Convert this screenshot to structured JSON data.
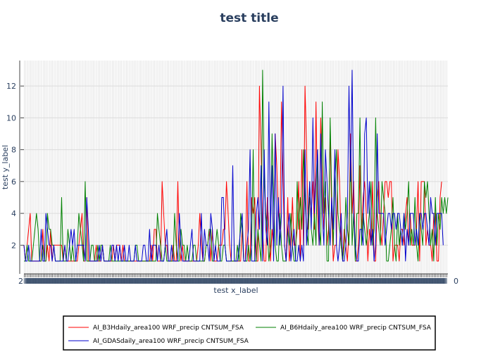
{
  "chart_data": {
    "type": "line",
    "title": "test title",
    "xlabel": "test x_label",
    "ylabel": "test y_label",
    "ylim": [
      0.2,
      13.6
    ],
    "yticks": [
      2,
      4,
      6,
      8,
      10,
      12
    ],
    "xlim": [
      0,
      270
    ],
    "xtick_count": 270,
    "xtick_labels": {
      "first": "2",
      "last": "0"
    },
    "grid": true,
    "legend_position": "bottom",
    "series": [
      {
        "name": "AI_B3Hdaily_area100 WRF_precip CNTSUM_FSA",
        "color": "#ff0000",
        "values": [
          2,
          1,
          2,
          3,
          4,
          1,
          1,
          1,
          1,
          1,
          1,
          1,
          3,
          1,
          1,
          2,
          1,
          3,
          1,
          2,
          2,
          2,
          2,
          2,
          2,
          1,
          2,
          1,
          1,
          1,
          1,
          1,
          1,
          1,
          1,
          2,
          3,
          4,
          1,
          1,
          5,
          1,
          1,
          1,
          1,
          1,
          2,
          1,
          1,
          1,
          2,
          1,
          1,
          1,
          1,
          1,
          1,
          2,
          1,
          2,
          2,
          2,
          1,
          2,
          1,
          1,
          1,
          1,
          1,
          1,
          1,
          1,
          1,
          1,
          1,
          1,
          1,
          1,
          1,
          1,
          1,
          2,
          1,
          3,
          3,
          1,
          1,
          1,
          6,
          4,
          2,
          2,
          1,
          1,
          1,
          2,
          1,
          1,
          6,
          2,
          1,
          2,
          1,
          1,
          1,
          1,
          1,
          1,
          1,
          1,
          1,
          2,
          4,
          2,
          1,
          1,
          2,
          2,
          3,
          1,
          3,
          1,
          1,
          1,
          2,
          2,
          2,
          3,
          3,
          6,
          4,
          2,
          1,
          1,
          1,
          1,
          1,
          1,
          1,
          3,
          1,
          1,
          6,
          1,
          1,
          5,
          4,
          5,
          1,
          1,
          12,
          8,
          3,
          1,
          1,
          5,
          3,
          1,
          3,
          2,
          9,
          7,
          4,
          3,
          11,
          6,
          2,
          1,
          5,
          1,
          2,
          5,
          2,
          2,
          3,
          6,
          1,
          8,
          2,
          12,
          8,
          3,
          5,
          4,
          6,
          3,
          11,
          4,
          2,
          10,
          6,
          3,
          5,
          2,
          3,
          9,
          4,
          1,
          2,
          2,
          8,
          6,
          2,
          1,
          3,
          2,
          1,
          3,
          9,
          4,
          6,
          1,
          1,
          2,
          7,
          3,
          5,
          6,
          4,
          1,
          3,
          2,
          6,
          1,
          1,
          5,
          6,
          3,
          2,
          4,
          6,
          6,
          5,
          6,
          6,
          1,
          2,
          2,
          2,
          1,
          3,
          3,
          2,
          4,
          5,
          2,
          4,
          2,
          2,
          2,
          3,
          6,
          1,
          6,
          6,
          6,
          2,
          3,
          2,
          2,
          1,
          4,
          4,
          1,
          1,
          5,
          6
        ]
      },
      {
        "name": "AI_B6Hdaily_area100 WRF_precip CNTSUM_FSA",
        "color": "#008000",
        "values": [
          1,
          1,
          2,
          1,
          1,
          1,
          2,
          3,
          4,
          3,
          1,
          1,
          2,
          1,
          1,
          4,
          3,
          3,
          2,
          2,
          1,
          1,
          1,
          1,
          5,
          1,
          1,
          1,
          3,
          2,
          1,
          2,
          1,
          1,
          2,
          4,
          3,
          2,
          1,
          6,
          1,
          1,
          1,
          2,
          2,
          1,
          1,
          2,
          1,
          2,
          2,
          1,
          1,
          1,
          1,
          2,
          1,
          1,
          1,
          1,
          1,
          1,
          1,
          1,
          1,
          1,
          1,
          1,
          1,
          1,
          1,
          2,
          2,
          1,
          1,
          1,
          1,
          1,
          1,
          1,
          1,
          1,
          1,
          1,
          1,
          4,
          3,
          2,
          1,
          1,
          2,
          1,
          1,
          1,
          1,
          1,
          4,
          2,
          1,
          1,
          3,
          2,
          2,
          1,
          2,
          1,
          1,
          1,
          2,
          2,
          1,
          1,
          1,
          1,
          1,
          1,
          2,
          2,
          3,
          3,
          1,
          1,
          2,
          3,
          2,
          1,
          1,
          2,
          2,
          1,
          1,
          1,
          1,
          1,
          1,
          1,
          2,
          1,
          4,
          3,
          1,
          1,
          1,
          2,
          1,
          2,
          8,
          1,
          1,
          3,
          2,
          1,
          13,
          6,
          4,
          3,
          1,
          2,
          9,
          5,
          2,
          1,
          1,
          4,
          2,
          1,
          1,
          1,
          3,
          2,
          4,
          2,
          1,
          1,
          6,
          3,
          5,
          3,
          8,
          5,
          3,
          2,
          6,
          3,
          2,
          4,
          2,
          8,
          3,
          2,
          11,
          4,
          6,
          1,
          1,
          10,
          5,
          2,
          6,
          8,
          4,
          3,
          2,
          1,
          2,
          5,
          3,
          2,
          8,
          2,
          4,
          1,
          4,
          4,
          10,
          2,
          4,
          3,
          2,
          3,
          4,
          6,
          2,
          3,
          10,
          4,
          3,
          2,
          6,
          5,
          4,
          1,
          1,
          2,
          3,
          5,
          2,
          1,
          4,
          2,
          3,
          2,
          4,
          3,
          4,
          6,
          2,
          3,
          2,
          5,
          2,
          1,
          4,
          3,
          2,
          6,
          5,
          6,
          4,
          2,
          3,
          1,
          5,
          2,
          4,
          3,
          5,
          4,
          5,
          4,
          5
        ]
      },
      {
        "name": "AI_GDASdaily_area100 WRF_precip CNTSUM_FSA",
        "color": "#0000cc",
        "values": [
          2,
          1,
          1,
          2,
          1,
          1,
          1,
          1,
          1,
          1,
          1,
          3,
          1,
          1,
          4,
          3,
          2,
          2,
          1,
          2,
          1,
          1,
          1,
          1,
          1,
          1,
          2,
          1,
          1,
          2,
          3,
          2,
          3,
          1,
          2,
          2,
          2,
          2,
          2,
          1,
          5,
          3,
          1,
          1,
          1,
          1,
          1,
          1,
          2,
          1,
          2,
          1,
          1,
          1,
          1,
          1,
          2,
          2,
          1,
          2,
          1,
          2,
          1,
          1,
          2,
          1,
          1,
          2,
          1,
          1,
          1,
          2,
          1,
          1,
          1,
          1,
          2,
          2,
          1,
          1,
          3,
          1,
          2,
          2,
          2,
          1,
          2,
          1,
          1,
          1,
          2,
          3,
          1,
          1,
          2,
          1,
          1,
          1,
          1,
          4,
          2,
          1,
          1,
          1,
          1,
          1,
          2,
          3,
          1,
          1,
          1,
          1,
          1,
          4,
          1,
          3,
          2,
          2,
          1,
          4,
          3,
          1,
          2,
          1,
          1,
          1,
          5,
          5,
          2,
          1,
          1,
          1,
          1,
          7,
          1,
          1,
          1,
          2,
          3,
          4,
          1,
          1,
          2,
          3,
          8,
          1,
          1,
          1,
          4,
          5,
          3,
          7,
          1,
          8,
          3,
          2,
          11,
          3,
          7,
          1,
          9,
          2,
          5,
          2,
          4,
          12,
          2,
          1,
          3,
          4,
          1,
          2,
          3,
          1,
          1,
          2,
          1,
          2,
          1,
          8,
          2,
          4,
          6,
          3,
          10,
          4,
          6,
          8,
          2,
          9,
          4,
          2,
          8,
          6,
          4,
          2,
          5,
          3,
          8,
          2,
          1,
          2,
          4,
          1,
          1,
          2,
          4,
          12,
          6,
          13,
          4,
          2,
          1,
          1,
          3,
          3,
          2,
          9,
          10,
          4,
          6,
          2,
          3,
          1,
          2,
          9,
          4,
          4,
          4,
          4,
          2,
          3,
          4,
          4,
          3,
          4,
          4,
          3,
          4,
          4,
          3,
          2,
          4,
          1,
          3,
          2,
          4,
          4,
          4,
          2,
          3,
          2,
          4,
          4,
          3,
          4,
          4,
          3,
          2,
          5,
          4,
          4,
          2,
          4,
          4,
          4,
          4,
          2
        ]
      }
    ]
  }
}
